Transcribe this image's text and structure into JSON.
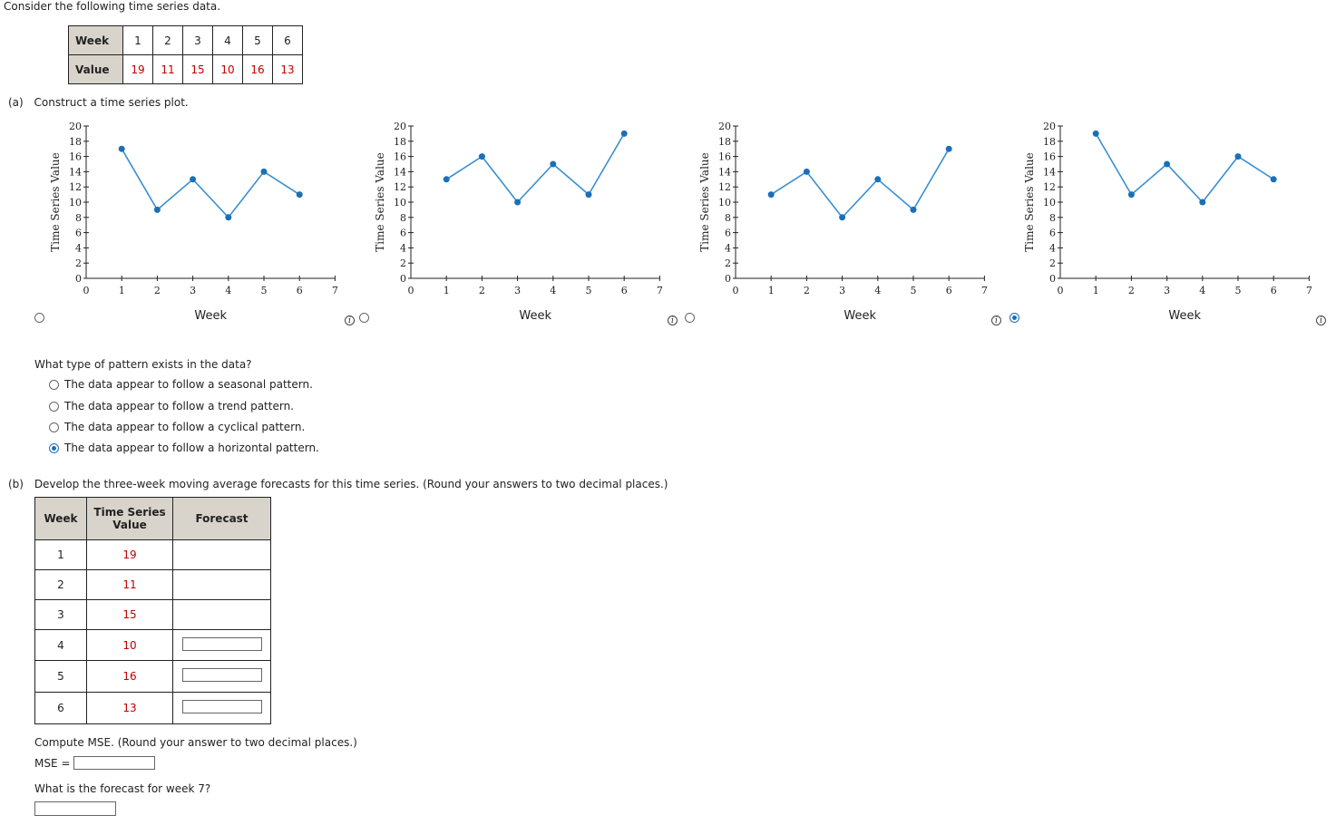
{
  "intro": "Consider the following time series data.",
  "data_table": {
    "row1_label": "Week",
    "row2_label": "Value",
    "weeks": [
      "1",
      "2",
      "3",
      "4",
      "5",
      "6"
    ],
    "values": [
      "19",
      "11",
      "15",
      "10",
      "16",
      "13"
    ]
  },
  "part_a": {
    "label": "(a)",
    "text": "Construct a time series plot.",
    "charts": [
      {
        "ylabel": "Time Series Value",
        "xlabel": "Week",
        "selected": false,
        "chart_data": {
          "type": "line",
          "x": [
            1,
            2,
            3,
            4,
            5,
            6
          ],
          "y": [
            17,
            9,
            13,
            8,
            14,
            11
          ],
          "xlim": [
            0,
            7
          ],
          "ylim": [
            0,
            20
          ]
        }
      },
      {
        "ylabel": "Time Series Value",
        "xlabel": "Week",
        "selected": false,
        "chart_data": {
          "type": "line",
          "x": [
            1,
            2,
            3,
            4,
            5,
            6
          ],
          "y": [
            13,
            16,
            10,
            15,
            11,
            19
          ],
          "xlim": [
            0,
            7
          ],
          "ylim": [
            0,
            20
          ]
        }
      },
      {
        "ylabel": "Time Series Value",
        "xlabel": "Week",
        "selected": false,
        "chart_data": {
          "type": "line",
          "x": [
            1,
            2,
            3,
            4,
            5,
            6
          ],
          "y": [
            11,
            14,
            8,
            13,
            9,
            17
          ],
          "xlim": [
            0,
            7
          ],
          "ylim": [
            0,
            20
          ]
        }
      },
      {
        "ylabel": "Time Series Value",
        "xlabel": "Week",
        "selected": true,
        "chart_data": {
          "type": "line",
          "x": [
            1,
            2,
            3,
            4,
            5,
            6
          ],
          "y": [
            19,
            11,
            15,
            10,
            16,
            13
          ],
          "xlim": [
            0,
            7
          ],
          "ylim": [
            0,
            20
          ]
        }
      }
    ],
    "y_ticks": [
      "0",
      "2",
      "4",
      "6",
      "8",
      "10",
      "12",
      "14",
      "16",
      "18",
      "20"
    ],
    "x_ticks": [
      "0",
      "1",
      "2",
      "3",
      "4",
      "5",
      "6",
      "7"
    ],
    "line_color": "#3a8fd0",
    "point_color": "#1a6fb8",
    "question": "What type of pattern exists in the data?",
    "options": [
      {
        "text": "The data appear to follow a seasonal pattern.",
        "selected": false
      },
      {
        "text": "The data appear to follow a trend pattern.",
        "selected": false
      },
      {
        "text": "The data appear to follow a cyclical pattern.",
        "selected": false
      },
      {
        "text": "The data appear to follow a horizontal pattern.",
        "selected": true
      }
    ]
  },
  "part_b": {
    "label": "(b)",
    "text": "Develop the three-week moving average forecasts for this time series. (Round your answers to two decimal places.)",
    "headers": {
      "week": "Week",
      "value": "Time Series Value",
      "forecast": "Forecast"
    },
    "rows": [
      {
        "week": "1",
        "value": "19"
      },
      {
        "week": "2",
        "value": "11"
      },
      {
        "week": "3",
        "value": "15"
      },
      {
        "week": "4",
        "value": "10"
      },
      {
        "week": "5",
        "value": "16"
      },
      {
        "week": "6",
        "value": "13"
      }
    ],
    "mse_text": "Compute MSE. (Round your answer to two decimal places.)",
    "mse_label": "MSE =",
    "forecast_q": "What is the forecast for week 7?"
  },
  "info_glyph": "i"
}
